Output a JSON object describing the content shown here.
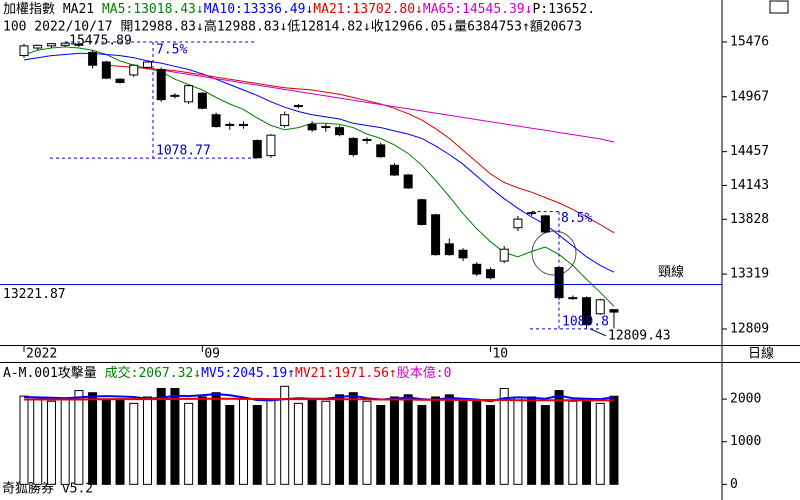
{
  "chart_data": {
    "type": "candlestick",
    "header_line1": [
      {
        "text": "加權指數 MA21 ",
        "color": "#000000"
      },
      {
        "text": "MA5:13018.43↓",
        "color": "#008000"
      },
      {
        "text": "MA10:13336.49↓",
        "color": "#0000ff"
      },
      {
        "text": "MA21:13702.80↓",
        "color": "#e00000"
      },
      {
        "text": "MA65:14545.39↓",
        "color": "#cc00cc"
      },
      {
        "text": "P:13652.",
        "color": "#000000"
      }
    ],
    "header_line2": "100 2022/10/17 開12988.83↓高12988.83↓低12814.82↓收12966.05↓量6384753↑額20673",
    "categories": [
      "2022",
      null,
      null,
      null,
      null,
      null,
      null,
      null,
      null,
      null,
      null,
      null,
      null,
      "09",
      null,
      null,
      null,
      null,
      null,
      null,
      null,
      null,
      null,
      null,
      null,
      null,
      null,
      null,
      null,
      null,
      null,
      null,
      null,
      null,
      "10",
      null,
      null,
      null,
      null,
      null,
      null,
      null,
      null,
      null
    ],
    "ohlc": [
      {
        "open": 15350,
        "high": 15460,
        "low": 15330,
        "close": 15440
      },
      {
        "open": 15420,
        "high": 15450,
        "low": 15400,
        "close": 15445
      },
      {
        "open": 15440,
        "high": 15465,
        "low": 15420,
        "close": 15460
      },
      {
        "open": 15445,
        "high": 15475.89,
        "low": 15430,
        "close": 15465
      },
      {
        "open": 15450,
        "high": 15460,
        "low": 15430,
        "close": 15455
      },
      {
        "open": 15380,
        "high": 15400,
        "low": 15230,
        "close": 15260
      },
      {
        "open": 15290,
        "high": 15300,
        "low": 15130,
        "close": 15140
      },
      {
        "open": 15130,
        "high": 15140,
        "low": 15090,
        "close": 15100
      },
      {
        "open": 15170,
        "high": 15270,
        "low": 15150,
        "close": 15260
      },
      {
        "open": 15240,
        "high": 15300,
        "low": 15220,
        "close": 15290
      },
      {
        "open": 15220,
        "high": 15240,
        "low": 14920,
        "close": 14940
      },
      {
        "open": 14980,
        "high": 15000,
        "low": 14950,
        "close": 14975
      },
      {
        "open": 14920,
        "high": 15080,
        "low": 14900,
        "close": 15070
      },
      {
        "open": 15000,
        "high": 15010,
        "low": 14850,
        "close": 14860
      },
      {
        "open": 14800,
        "high": 14820,
        "low": 14680,
        "close": 14690
      },
      {
        "open": 14710,
        "high": 14730,
        "low": 14660,
        "close": 14705
      },
      {
        "open": 14700,
        "high": 14740,
        "low": 14670,
        "close": 14710
      },
      {
        "open": 14560,
        "high": 14570,
        "low": 14397.12,
        "close": 14400
      },
      {
        "open": 14420,
        "high": 14620,
        "low": 14400,
        "close": 14610
      },
      {
        "open": 14700,
        "high": 14830,
        "low": 14680,
        "close": 14800
      },
      {
        "open": 14880,
        "high": 14900,
        "low": 14860,
        "close": 14885
      },
      {
        "open": 14710,
        "high": 14740,
        "low": 14640,
        "close": 14660
      },
      {
        "open": 14690,
        "high": 14720,
        "low": 14640,
        "close": 14690
      },
      {
        "open": 14680,
        "high": 14700,
        "low": 14600,
        "close": 14615
      },
      {
        "open": 14580,
        "high": 14590,
        "low": 14410,
        "close": 14430
      },
      {
        "open": 14570,
        "high": 14590,
        "low": 14530,
        "close": 14570
      },
      {
        "open": 14520,
        "high": 14540,
        "low": 14400,
        "close": 14410
      },
      {
        "open": 14330,
        "high": 14350,
        "low": 14230,
        "close": 14240
      },
      {
        "open": 14240,
        "high": 14250,
        "low": 14110,
        "close": 14120
      },
      {
        "open": 14010,
        "high": 14020,
        "low": 13770,
        "close": 13780
      },
      {
        "open": 13870,
        "high": 13880,
        "low": 13490,
        "close": 13500
      },
      {
        "open": 13600,
        "high": 13650,
        "low": 13490,
        "close": 13500
      },
      {
        "open": 13540,
        "high": 13560,
        "low": 13440,
        "close": 13470
      },
      {
        "open": 13410,
        "high": 13430,
        "low": 13300,
        "close": 13320
      },
      {
        "open": 13360,
        "high": 13380,
        "low": 13270,
        "close": 13285
      },
      {
        "open": 13440,
        "high": 13580,
        "low": 13420,
        "close": 13550
      },
      {
        "open": 13750,
        "high": 13860,
        "low": 13720,
        "close": 13830
      },
      {
        "open": 13890,
        "high": 13899.23,
        "low": 13860,
        "close": 13885
      },
      {
        "open": 13860,
        "high": 13870,
        "low": 13700,
        "close": 13710
      },
      {
        "open": 13380,
        "high": 13390,
        "low": 13080,
        "close": 13100
      },
      {
        "open": 13100,
        "high": 13120,
        "low": 13080,
        "close": 13100
      },
      {
        "open": 13100,
        "high": 13110,
        "low": 12809.43,
        "close": 12850
      },
      {
        "open": 12950,
        "high": 13090,
        "low": 12940,
        "close": 13080
      },
      {
        "open": 12988.83,
        "high": 12988.83,
        "low": 12814.82,
        "close": 12966.05
      }
    ],
    "up_color": "#ffffff",
    "down_color": "#000000",
    "series": [
      {
        "name": "MA5",
        "color": "#008000",
        "values": [
          15355,
          15400,
          15420,
          15430,
          15420,
          15400,
          15360,
          15300,
          15260,
          15230,
          15200,
          15130,
          15080,
          15030,
          14960,
          14900,
          14850,
          14770,
          14700,
          14660,
          14680,
          14720,
          14720,
          14710,
          14680,
          14620,
          14580,
          14520,
          14440,
          14330,
          14190,
          14040,
          13880,
          13740,
          13620,
          13520,
          13480,
          13530,
          13570,
          13500,
          13400,
          13270,
          13150,
          13018.43
        ]
      },
      {
        "name": "MA10",
        "color": "#0000ff",
        "values": [
          15310,
          15330,
          15350,
          15360,
          15370,
          15370,
          15360,
          15350,
          15330,
          15300,
          15280,
          15250,
          15220,
          15180,
          15130,
          15080,
          15030,
          14980,
          14920,
          14870,
          14830,
          14800,
          14780,
          14760,
          14720,
          14700,
          14680,
          14650,
          14620,
          14580,
          14510,
          14430,
          14340,
          14230,
          14120,
          14020,
          13930,
          13850,
          13780,
          13680,
          13580,
          13480,
          13400,
          13336.49
        ]
      },
      {
        "name": "MA21",
        "color": "#e00000",
        "values": [
          null,
          null,
          null,
          null,
          null,
          null,
          15260,
          15250,
          15240,
          15230,
          15220,
          15210,
          15190,
          15170,
          15150,
          15130,
          15110,
          15090,
          15070,
          15050,
          15040,
          15030,
          15010,
          14990,
          14960,
          14930,
          14900,
          14860,
          14810,
          14750,
          14670,
          14580,
          14470,
          14360,
          14250,
          14170,
          14120,
          14080,
          14030,
          13980,
          13920,
          13850,
          13780,
          13702.8
        ]
      },
      {
        "name": "MA65",
        "color": "#cc00cc",
        "values": [
          null,
          null,
          null,
          null,
          null,
          null,
          null,
          null,
          null,
          null,
          15216,
          15195,
          15175,
          15155,
          15135,
          15115,
          15095,
          15075,
          15055,
          15035,
          15015,
          14995,
          14975,
          14955,
          14935,
          14915,
          14895,
          14875,
          14855,
          14835,
          14815,
          14795,
          14775,
          14755,
          14735,
          14715,
          14695,
          14675,
          14655,
          14635,
          14615,
          14595,
          14575,
          14545.39
        ]
      }
    ],
    "ylim": [
      12660,
      15541
    ],
    "yticks": [
      15476,
      14967,
      14457,
      14143,
      13828,
      13319,
      12809
    ],
    "annotations": {
      "peak": 15475.89,
      "peak_pct": "7.5%",
      "drop1": 1078.77,
      "peak2_pct": "8.5%",
      "drop2": 1089.8,
      "low": 12809.43,
      "neckline": 13221.87,
      "neckline_label": "頸線",
      "neckline_color": "#0000ff"
    },
    "period": "日線",
    "volume": {
      "header": [
        {
          "text": "A-M.001攻擊量 ",
          "color": "#000000"
        },
        {
          "text": "成交:2067.32↓",
          "color": "#008000"
        },
        {
          "text": "MV5:2045.19↑",
          "color": "#0000ff"
        },
        {
          "text": "MV21:1971.56↑",
          "color": "#e00000"
        },
        {
          "text": "股本億:0",
          "color": "#cc00cc"
        }
      ],
      "values": [
        2070,
        2000,
        1950,
        2000,
        2200,
        2150,
        1980,
        2000,
        1900,
        2050,
        2250,
        2250,
        1900,
        2050,
        2150,
        1850,
        2000,
        1850,
        2000,
        2300,
        1900,
        2000,
        1950,
        2100,
        2150,
        1950,
        1850,
        2050,
        2100,
        1850,
        2050,
        2100,
        1950,
        1950,
        1850,
        2250,
        2050,
        2050,
        1850,
        2200,
        1950,
        1950,
        1900,
        2067.32
      ],
      "series": [
        {
          "name": "MV5",
          "color": "#0000ff",
          "values": [
            2050,
            2040,
            2030,
            2020,
            2040,
            2060,
            2070,
            2060,
            2050,
            2010,
            2030,
            2080,
            2070,
            2090,
            2120,
            2090,
            2040,
            1980,
            1970,
            2000,
            2020,
            2010,
            2010,
            2050,
            2080,
            2020,
            1990,
            2010,
            2040,
            2000,
            1980,
            2030,
            2010,
            1990,
            1950,
            2020,
            2040,
            2030,
            2010,
            2080,
            2020,
            2010,
            2000,
            2045.19
          ]
        },
        {
          "name": "MV21",
          "color": "#e00000",
          "values": [
            1990,
            1990,
            1990,
            1990,
            1990,
            1995,
            1995,
            2000,
            2000,
            2000,
            2000,
            2005,
            2005,
            2010,
            2010,
            2010,
            2005,
            2005,
            2000,
            2000,
            2000,
            2000,
            2000,
            1995,
            1995,
            1995,
            1990,
            1990,
            1990,
            1985,
            1985,
            1985,
            1980,
            1980,
            1980,
            1980,
            1975,
            1975,
            1975,
            1975,
            1975,
            1970,
            1970,
            1971.56
          ]
        }
      ],
      "ylim": [
        -250,
        2800
      ],
      "yticks": [
        2000,
        1000,
        0
      ]
    },
    "footer": "奇狐勝券 v5.2"
  }
}
